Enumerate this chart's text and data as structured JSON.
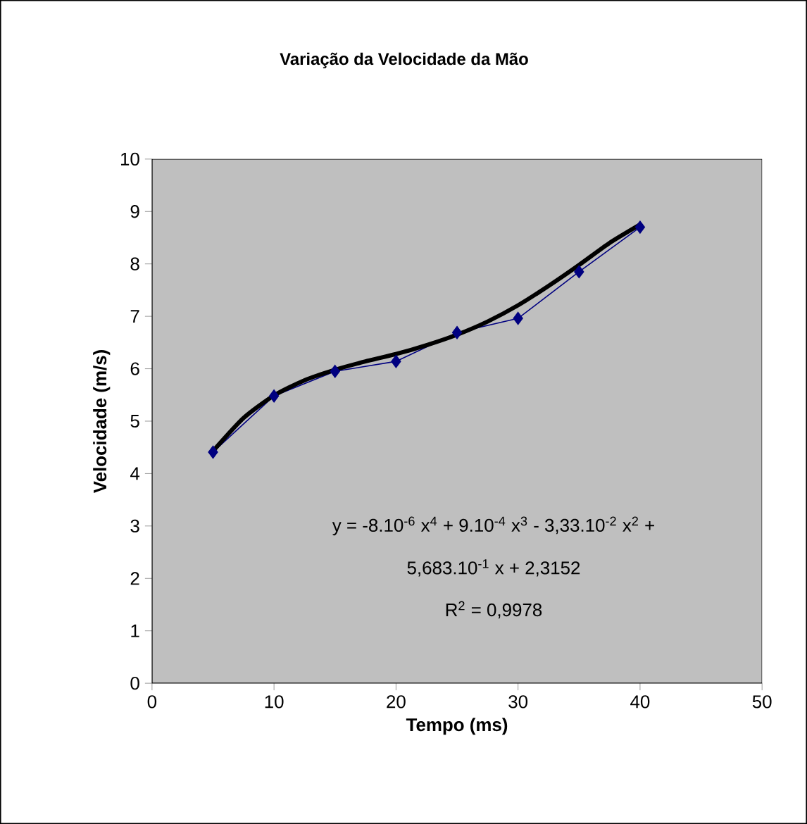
{
  "chart_data": {
    "type": "line",
    "title": "Variação da Velocidade da Mão",
    "xlabel": "Tempo (ms)",
    "ylabel": "Velocidade (m/s)",
    "series": [
      {
        "color": "#000080",
        "marker": "diamond",
        "x": [
          5,
          10,
          15,
          20,
          25,
          30,
          35,
          40
        ],
        "values": [
          4.41,
          5.48,
          5.95,
          6.14,
          6.69,
          6.96,
          7.85,
          8.7
        ]
      },
      {
        "color": "#000000",
        "marker": "none",
        "x": [
          5,
          7.5,
          10,
          12.5,
          15,
          17.5,
          20,
          22.5,
          25,
          27.5,
          30,
          32.5,
          35,
          37.5,
          40
        ],
        "values": [
          4.43,
          5.06,
          5.49,
          5.78,
          5.98,
          6.14,
          6.28,
          6.45,
          6.65,
          6.9,
          7.21,
          7.58,
          7.98,
          8.4,
          8.75
        ]
      }
    ],
    "xlim": [
      0,
      50
    ],
    "xticks": [
      0,
      10,
      20,
      30,
      40,
      50
    ],
    "ylim": [
      0,
      10
    ],
    "yticks": [
      0,
      1,
      2,
      3,
      4,
      5,
      6,
      7,
      8,
      9,
      10
    ],
    "grid": false,
    "annotations": [
      "y = -8.10$^{-6}$ x$^{4}$ + 9.10$^{-4}$ x$^{3}$ - 3,33.10$^{-2}$ x$^{2}$ +",
      "5,683.10$^{-1}$ x + 2,3152",
      "R$^{2}$ = 0,9978"
    ]
  }
}
